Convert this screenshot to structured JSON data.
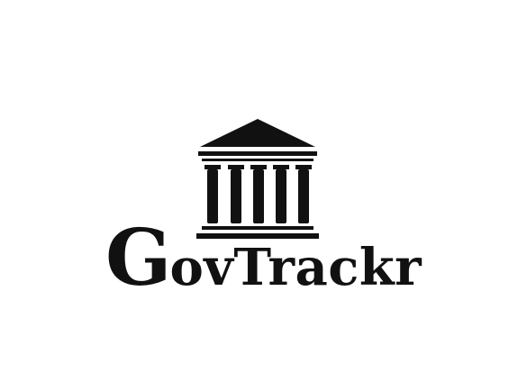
{
  "logo": {
    "initial": "G",
    "rest": "ovTrackr",
    "icon": "government-building-icon",
    "colors": {
      "ink": "#111111",
      "background": "#ffffff"
    }
  }
}
